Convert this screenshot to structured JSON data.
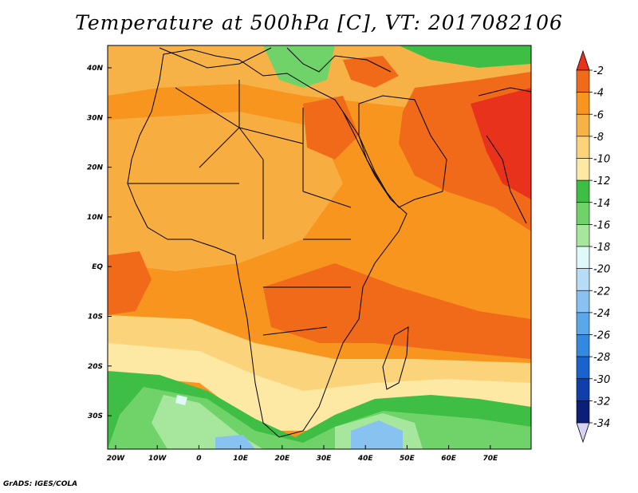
{
  "title": "Temperature at 500hPa [C], VT: 2017082106",
  "credit": "GrADS: IGES/COLA",
  "map": {
    "lon_labels": [
      "20W",
      "10W",
      "0",
      "10E",
      "20E",
      "30E",
      "40E",
      "50E",
      "60E",
      "70E"
    ],
    "lat_labels": [
      "40N",
      "30N",
      "20N",
      "10N",
      "EQ",
      "10S",
      "20S",
      "30S"
    ]
  },
  "colorbar": {
    "labels": [
      "-2",
      "-4",
      "-6",
      "-8",
      "-10",
      "-12",
      "-14",
      "-16",
      "-18",
      "-20",
      "-22",
      "-24",
      "-26",
      "-28",
      "-30",
      "-32",
      "-34"
    ],
    "colors": [
      "#e8321c",
      "#f06a1a",
      "#f7951f",
      "#f7b247",
      "#fbd37a",
      "#fde9a4",
      "#3fbe45",
      "#6fd36a",
      "#a7e79d",
      "#dff9f9",
      "#b6dcf6",
      "#88c2f0",
      "#5aa7ea",
      "#3389df",
      "#1a63cc",
      "#0f3faa",
      "#0b1f78"
    ],
    "top_arrow_color": "#e8321c",
    "bottom_arrow_color": "#d6d2f2"
  }
}
